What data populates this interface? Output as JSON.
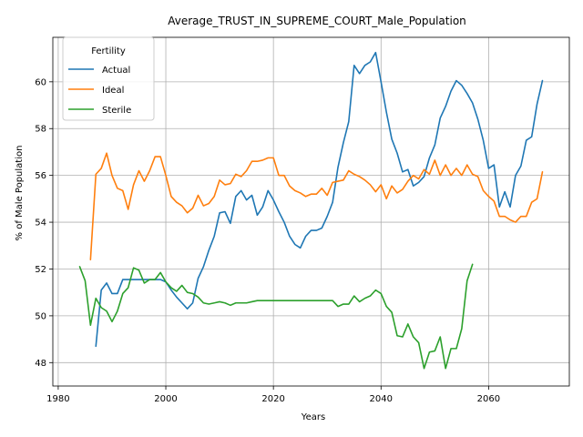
{
  "chart_data": {
    "type": "line",
    "title": "Average_TRUST_IN_SUPREME_COURT_Male_Population",
    "xlabel": "Years",
    "ylabel": "% of Male Population",
    "xlim": [
      1979,
      2075
    ],
    "ylim": [
      47,
      61.9
    ],
    "xticks": [
      1980,
      2000,
      2020,
      2040,
      2060
    ],
    "yticks": [
      48,
      50,
      52,
      54,
      56,
      58,
      60
    ],
    "grid": true,
    "legend": {
      "title": "Fertility",
      "placement": "top-left"
    },
    "series": [
      {
        "name": "Actual",
        "color": "#1f77b4",
        "x": [
          1987,
          1988,
          1989,
          1990,
          1991,
          1992,
          1993,
          1994,
          1995,
          1996,
          1997,
          1998,
          1999,
          2000,
          2001,
          2002,
          2003,
          2004,
          2005,
          2006,
          2007,
          2008,
          2009,
          2010,
          2011,
          2012,
          2013,
          2014,
          2015,
          2016,
          2017,
          2018,
          2019,
          2020,
          2021,
          2022,
          2023,
          2024,
          2025,
          2026,
          2027,
          2028,
          2029,
          2030,
          2031,
          2032,
          2033,
          2034,
          2035,
          2036,
          2037,
          2038,
          2039,
          2040,
          2041,
          2042,
          2043,
          2044,
          2045,
          2046,
          2047,
          2048,
          2049,
          2050,
          2051,
          2052,
          2053,
          2054,
          2055,
          2056,
          2057,
          2058,
          2059,
          2060,
          2061,
          2062,
          2063,
          2064,
          2065,
          2066,
          2067,
          2068,
          2069,
          2070
        ],
        "values": [
          48.7,
          51.1,
          51.4,
          50.95,
          50.95,
          51.55,
          51.55,
          51.55,
          51.55,
          51.55,
          51.55,
          51.55,
          51.55,
          51.45,
          51.1,
          50.8,
          50.55,
          50.3,
          50.55,
          51.6,
          52.1,
          52.8,
          53.4,
          54.4,
          54.45,
          53.95,
          55.1,
          55.35,
          54.95,
          55.15,
          54.3,
          54.65,
          55.35,
          54.95,
          54.45,
          54.0,
          53.4,
          53.05,
          52.9,
          53.4,
          53.65,
          53.65,
          53.75,
          54.25,
          54.85,
          56.35,
          57.4,
          58.3,
          60.7,
          60.35,
          60.7,
          60.85,
          61.25,
          60.0,
          58.7,
          57.55,
          56.95,
          56.15,
          56.25,
          55.55,
          55.7,
          55.95,
          56.75,
          57.3,
          58.45,
          58.95,
          59.6,
          60.05,
          59.85,
          59.5,
          59.1,
          58.4,
          57.5,
          56.3,
          56.45,
          54.65,
          55.3,
          54.65,
          56.0,
          56.4,
          57.5,
          57.65,
          59.05,
          60.05
        ]
      },
      {
        "name": "Ideal",
        "color": "#ff7f0e",
        "x": [
          1986,
          1987,
          1988,
          1989,
          1990,
          1991,
          1992,
          1993,
          1994,
          1995,
          1996,
          1997,
          1998,
          1999,
          2000,
          2001,
          2002,
          2003,
          2004,
          2005,
          2006,
          2007,
          2008,
          2009,
          2010,
          2011,
          2012,
          2013,
          2014,
          2015,
          2016,
          2017,
          2018,
          2019,
          2020,
          2021,
          2022,
          2023,
          2024,
          2025,
          2026,
          2027,
          2028,
          2029,
          2030,
          2031,
          2032,
          2033,
          2034,
          2035,
          2036,
          2037,
          2038,
          2039,
          2040,
          2041,
          2042,
          2043,
          2044,
          2045,
          2046,
          2047,
          2048,
          2049,
          2050,
          2051,
          2052,
          2053,
          2054,
          2055,
          2056,
          2057,
          2058,
          2059,
          2060,
          2061,
          2062,
          2063,
          2064,
          2065,
          2066,
          2067,
          2068,
          2069,
          2070
        ],
        "values": [
          52.4,
          56.05,
          56.3,
          56.95,
          56.0,
          55.45,
          55.35,
          54.55,
          55.6,
          56.2,
          55.75,
          56.2,
          56.8,
          56.8,
          56.0,
          55.1,
          54.85,
          54.7,
          54.4,
          54.6,
          55.15,
          54.7,
          54.8,
          55.1,
          55.8,
          55.6,
          55.65,
          56.05,
          55.95,
          56.2,
          56.6,
          56.6,
          56.65,
          56.75,
          56.75,
          56.0,
          56.0,
          55.55,
          55.35,
          55.25,
          55.1,
          55.2,
          55.2,
          55.45,
          55.15,
          55.7,
          55.75,
          55.8,
          56.2,
          56.05,
          55.95,
          55.8,
          55.6,
          55.3,
          55.6,
          55.0,
          55.55,
          55.25,
          55.4,
          55.75,
          56.0,
          55.85,
          56.25,
          56.05,
          56.65,
          56.0,
          56.45,
          56.0,
          56.3,
          56.0,
          56.45,
          56.05,
          55.95,
          55.35,
          55.1,
          54.9,
          54.25,
          54.25,
          54.1,
          54.0,
          54.25,
          54.25,
          54.85,
          55.0,
          56.15
        ]
      },
      {
        "name": "Sterile",
        "color": "#2ca02c",
        "x": [
          1984,
          1985,
          1986,
          1987,
          1988,
          1989,
          1990,
          1991,
          1992,
          1993,
          1994,
          1995,
          1996,
          1997,
          1998,
          1999,
          2000,
          2001,
          2002,
          2003,
          2004,
          2005,
          2006,
          2007,
          2008,
          2009,
          2010,
          2011,
          2012,
          2013,
          2014,
          2015,
          2016,
          2017,
          2018,
          2019,
          2020,
          2021,
          2022,
          2023,
          2024,
          2025,
          2026,
          2027,
          2028,
          2029,
          2030,
          2031,
          2032,
          2033,
          2034,
          2035,
          2036,
          2037,
          2038,
          2039,
          2040,
          2041,
          2042,
          2043,
          2044,
          2045,
          2046,
          2047,
          2048,
          2049,
          2050,
          2051,
          2052,
          2053,
          2054,
          2055,
          2056,
          2057
        ],
        "values": [
          52.1,
          51.5,
          49.6,
          50.75,
          50.35,
          50.2,
          49.75,
          50.2,
          50.95,
          51.2,
          52.05,
          51.95,
          51.4,
          51.55,
          51.55,
          51.85,
          51.45,
          51.2,
          51.05,
          51.3,
          51.0,
          50.95,
          50.8,
          50.55,
          50.5,
          50.55,
          50.6,
          50.55,
          50.45,
          50.55,
          50.55,
          50.55,
          50.6,
          50.65,
          50.65,
          50.65,
          50.65,
          50.65,
          50.65,
          50.65,
          50.65,
          50.65,
          50.65,
          50.65,
          50.65,
          50.65,
          50.65,
          50.65,
          50.4,
          50.5,
          50.5,
          50.85,
          50.6,
          50.75,
          50.85,
          51.1,
          50.95,
          50.4,
          50.15,
          49.15,
          49.1,
          49.65,
          49.1,
          48.85,
          47.75,
          48.45,
          48.5,
          49.1,
          47.75,
          48.6,
          48.6,
          49.45,
          51.5,
          52.2
        ]
      }
    ]
  }
}
